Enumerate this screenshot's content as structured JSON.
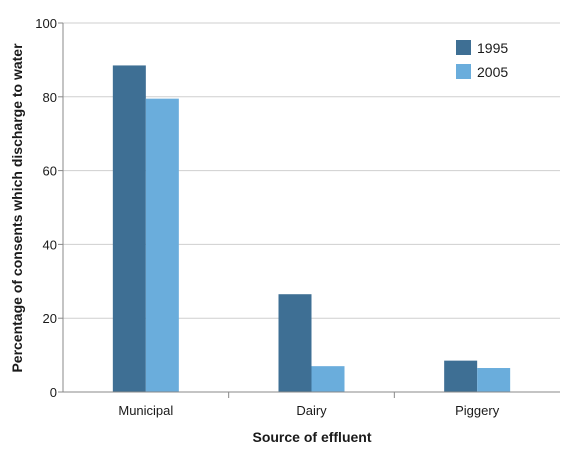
{
  "chart_data": {
    "type": "bar",
    "title": "",
    "xlabel": "Source of effluent",
    "ylabel": "Percentage of consents which discharge to water",
    "categories": [
      "Municipal",
      "Dairy",
      "Piggery"
    ],
    "series": [
      {
        "name": "1995",
        "values": [
          88.5,
          26.5,
          8.5
        ],
        "color": "#3e6f94"
      },
      {
        "name": "2005",
        "values": [
          79.5,
          7.0,
          6.5
        ],
        "color": "#6aaddc"
      }
    ],
    "ylim": [
      0,
      100
    ],
    "yticks": [
      0,
      20,
      40,
      60,
      80,
      100
    ],
    "grid": true,
    "legend_position": "top-right"
  }
}
